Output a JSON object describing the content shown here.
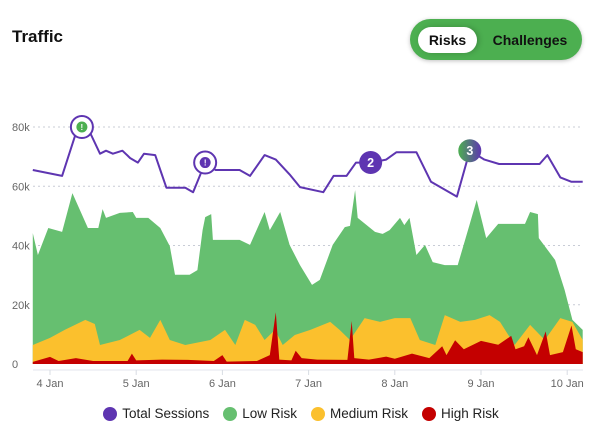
{
  "header": {
    "title": "Traffic"
  },
  "toggle": {
    "options": [
      "Risks",
      "Challenges"
    ],
    "selected": "Risks"
  },
  "colors": {
    "total": "#5e35b1",
    "low": "#66bf70",
    "medium": "#fbc02d",
    "high": "#c40000",
    "toggle": "#4caf50"
  },
  "chart_data": {
    "type": "area",
    "title": "Traffic",
    "x_unit": "days since 4 Jan",
    "xlim": [
      -0.2,
      6.18
    ],
    "ylim": [
      0,
      85
    ],
    "y_unit": "thousands",
    "y_ticks": [
      {
        "v": 0,
        "label": "0"
      },
      {
        "v": 20,
        "label": "20k"
      },
      {
        "v": 40,
        "label": "40k"
      },
      {
        "v": 60,
        "label": "60k"
      },
      {
        "v": 80,
        "label": "80k"
      }
    ],
    "x_ticks": [
      {
        "v": 0,
        "label": "4 Jan"
      },
      {
        "v": 1,
        "label": "5 Jan"
      },
      {
        "v": 2,
        "label": "6 Jan"
      },
      {
        "v": 3,
        "label": "7 Jan"
      },
      {
        "v": 4,
        "label": "8 Jan"
      },
      {
        "v": 5,
        "label": "9 Jan"
      },
      {
        "v": 6,
        "label": "10 Jan"
      }
    ],
    "grid": true,
    "legend_position": "bottom",
    "series": [
      {
        "name": "Total Sessions",
        "kind": "line",
        "points": [
          [
            -0.2,
            65.5
          ],
          [
            0.14,
            63.5
          ],
          [
            0.29,
            77
          ],
          [
            0.37,
            80
          ],
          [
            0.45,
            79
          ],
          [
            0.58,
            71
          ],
          [
            0.65,
            72
          ],
          [
            0.73,
            71
          ],
          [
            0.84,
            72
          ],
          [
            0.93,
            69.5
          ],
          [
            1.02,
            68
          ],
          [
            1.09,
            71
          ],
          [
            1.22,
            70.5
          ],
          [
            1.28,
            65.5
          ],
          [
            1.35,
            59.5
          ],
          [
            1.57,
            59.5
          ],
          [
            1.66,
            58
          ],
          [
            1.8,
            68
          ],
          [
            1.92,
            65.5
          ],
          [
            2.2,
            65.5
          ],
          [
            2.32,
            63.5
          ],
          [
            2.49,
            70.5
          ],
          [
            2.62,
            69
          ],
          [
            2.78,
            64
          ],
          [
            2.9,
            59.7
          ],
          [
            3.17,
            58
          ],
          [
            3.29,
            63.5
          ],
          [
            3.44,
            63.5
          ],
          [
            3.55,
            68
          ],
          [
            3.72,
            68
          ],
          [
            3.9,
            69
          ],
          [
            4.02,
            71.5
          ],
          [
            4.25,
            71.5
          ],
          [
            4.42,
            61.5
          ],
          [
            4.72,
            56.5
          ],
          [
            4.87,
            72
          ],
          [
            5.04,
            69
          ],
          [
            5.21,
            67.5
          ],
          [
            5.68,
            67.5
          ],
          [
            5.77,
            70.5
          ],
          [
            5.92,
            63
          ],
          [
            6.05,
            61.5
          ],
          [
            6.18,
            61.5
          ]
        ]
      },
      {
        "name": "Low Risk",
        "kind": "area",
        "points": [
          [
            -0.2,
            44.2
          ],
          [
            -0.14,
            36.8
          ],
          [
            -0.02,
            45.9
          ],
          [
            0.14,
            44.6
          ],
          [
            0.26,
            57.7
          ],
          [
            0.44,
            45.9
          ],
          [
            0.56,
            45.9
          ],
          [
            0.61,
            52.3
          ],
          [
            0.65,
            49.3
          ],
          [
            0.81,
            51
          ],
          [
            0.96,
            51.3
          ],
          [
            1.0,
            49.3
          ],
          [
            1.14,
            49.3
          ],
          [
            1.28,
            45.9
          ],
          [
            1.39,
            39.8
          ],
          [
            1.45,
            30.1
          ],
          [
            1.62,
            30.1
          ],
          [
            1.71,
            31.7
          ],
          [
            1.77,
            45.2
          ],
          [
            1.8,
            49.6
          ],
          [
            1.87,
            50.6
          ],
          [
            1.89,
            41.9
          ],
          [
            2.2,
            41.9
          ],
          [
            2.32,
            40.2
          ],
          [
            2.49,
            51.3
          ],
          [
            2.55,
            45.2
          ],
          [
            2.67,
            51.3
          ],
          [
            2.78,
            40.2
          ],
          [
            2.9,
            33.4
          ],
          [
            3.04,
            26.7
          ],
          [
            3.13,
            28.4
          ],
          [
            3.28,
            40.2
          ],
          [
            3.42,
            46.2
          ],
          [
            3.48,
            46.6
          ],
          [
            3.54,
            58.7
          ],
          [
            3.57,
            49.3
          ],
          [
            3.77,
            44.6
          ],
          [
            3.86,
            43.9
          ],
          [
            3.94,
            45.2
          ],
          [
            4.06,
            49.3
          ],
          [
            4.11,
            46.9
          ],
          [
            4.17,
            49.3
          ],
          [
            4.25,
            36.8
          ],
          [
            4.35,
            40.2
          ],
          [
            4.44,
            34.4
          ],
          [
            4.58,
            33.4
          ],
          [
            4.73,
            33.4
          ],
          [
            4.87,
            47.3
          ],
          [
            4.95,
            55.4
          ],
          [
            5.06,
            42.5
          ],
          [
            5.2,
            47.3
          ],
          [
            5.51,
            47.3
          ],
          [
            5.57,
            51.3
          ],
          [
            5.66,
            50.6
          ],
          [
            5.67,
            42.5
          ],
          [
            5.86,
            35.1
          ],
          [
            5.97,
            25
          ],
          [
            6.06,
            14.9
          ],
          [
            6.18,
            11.5
          ]
        ]
      },
      {
        "name": "Medium Risk",
        "kind": "area",
        "points": [
          [
            -0.2,
            6.4
          ],
          [
            0,
            8.8
          ],
          [
            0.17,
            11.5
          ],
          [
            0.41,
            14.9
          ],
          [
            0.52,
            13.5
          ],
          [
            0.58,
            6.4
          ],
          [
            0.81,
            8.1
          ],
          [
            1.04,
            11.5
          ],
          [
            1.16,
            8.8
          ],
          [
            1.28,
            14.9
          ],
          [
            1.39,
            8.1
          ],
          [
            1.57,
            6.4
          ],
          [
            1.86,
            8.1
          ],
          [
            2.03,
            11.5
          ],
          [
            2.15,
            6.4
          ],
          [
            2.26,
            14.9
          ],
          [
            2.38,
            13.2
          ],
          [
            2.49,
            8.1
          ],
          [
            2.61,
            11.5
          ],
          [
            2.7,
            6.4
          ],
          [
            2.84,
            9.8
          ],
          [
            3.02,
            11.5
          ],
          [
            3.25,
            14.2
          ],
          [
            3.36,
            11.5
          ],
          [
            3.48,
            8.1
          ],
          [
            3.65,
            15.5
          ],
          [
            3.83,
            14.2
          ],
          [
            4.0,
            15.5
          ],
          [
            4.18,
            15.5
          ],
          [
            4.29,
            8.1
          ],
          [
            4.47,
            6.4
          ],
          [
            4.58,
            16.5
          ],
          [
            4.76,
            14.2
          ],
          [
            4.93,
            14.9
          ],
          [
            5.1,
            16.5
          ],
          [
            5.22,
            14.2
          ],
          [
            5.39,
            6.4
          ],
          [
            5.57,
            13.2
          ],
          [
            5.74,
            8.1
          ],
          [
            5.92,
            15.5
          ],
          [
            6.06,
            14.2
          ],
          [
            6.18,
            8.1
          ]
        ]
      },
      {
        "name": "High Risk",
        "kind": "area",
        "points": [
          [
            -0.2,
            0.7
          ],
          [
            0,
            2.4
          ],
          [
            0.1,
            1.0
          ],
          [
            0.3,
            2.0
          ],
          [
            0.5,
            1.0
          ],
          [
            0.9,
            1.0
          ],
          [
            0.95,
            3.5
          ],
          [
            1.0,
            1.2
          ],
          [
            1.3,
            1.5
          ],
          [
            1.6,
            1.4
          ],
          [
            1.9,
            1.0
          ],
          [
            2.0,
            3.0
          ],
          [
            2.05,
            0.8
          ],
          [
            2.4,
            1.0
          ],
          [
            2.55,
            3.0
          ],
          [
            2.62,
            17.5
          ],
          [
            2.66,
            1.5
          ],
          [
            2.8,
            1.2
          ],
          [
            2.85,
            4.5
          ],
          [
            2.92,
            2.0
          ],
          [
            3.1,
            1.5
          ],
          [
            3.45,
            1.4
          ],
          [
            3.5,
            14.5
          ],
          [
            3.53,
            2.0
          ],
          [
            3.7,
            1.5
          ],
          [
            3.9,
            2.5
          ],
          [
            4.0,
            1.8
          ],
          [
            4.2,
            3.5
          ],
          [
            4.4,
            2.0
          ],
          [
            4.55,
            6.0
          ],
          [
            4.6,
            3.0
          ],
          [
            4.7,
            8.0
          ],
          [
            4.8,
            5.0
          ],
          [
            5.0,
            7.8
          ],
          [
            5.2,
            6.5
          ],
          [
            5.35,
            9.5
          ],
          [
            5.4,
            5.0
          ],
          [
            5.5,
            6.0
          ],
          [
            5.55,
            9.0
          ],
          [
            5.65,
            3.0
          ],
          [
            5.75,
            11.0
          ],
          [
            5.8,
            3.0
          ],
          [
            5.95,
            4.0
          ],
          [
            6.05,
            13
          ],
          [
            6.1,
            5.0
          ],
          [
            6.18,
            4.0
          ]
        ]
      }
    ],
    "annotations": [
      {
        "x": 0.37,
        "y": 80,
        "label": "!",
        "style": "green-alert"
      },
      {
        "x": 1.8,
        "y": 68,
        "label": "!",
        "style": "purple-alert"
      },
      {
        "x": 3.72,
        "y": 68,
        "label": "2",
        "style": "purple-count"
      },
      {
        "x": 4.87,
        "y": 72,
        "label": "3",
        "style": "gradient-count"
      }
    ]
  }
}
